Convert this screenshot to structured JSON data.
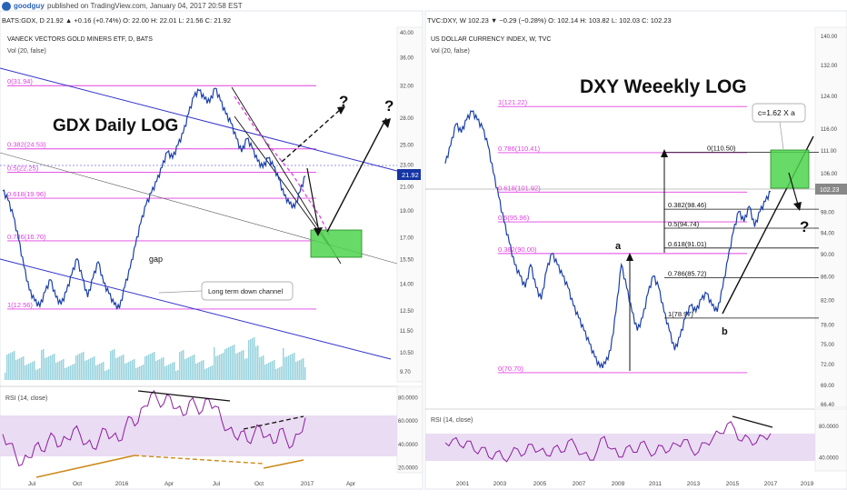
{
  "header": {
    "user": "goodguy",
    "published": "published on TradingView.com, January 04, 2017 20:58 EST"
  },
  "colors": {
    "fib": "#e040e0",
    "channel": "#3333cc",
    "price_up": "#1b3fa8",
    "rsi": "#8b1e9e",
    "rsi_band": "#eadcf3",
    "volume": "#7fc8d4",
    "box": "#4cd44c",
    "diverge": "#cc8a1a",
    "axis_highlight": "#1434a4"
  },
  "chart_data": [
    {
      "type": "line",
      "id": "gdx",
      "quote": "BATS:GDX, D  21.92 ▲ +0.16 (+0.74%)  O: 22.00  H: 22.01  L: 21.56  C: 21.92",
      "title": "VANECK VECTORS GOLD MINERS ETF, D, BATS",
      "vol_label": "Vol (20, false)",
      "annotation": "GDX Daily LOG",
      "scale": "log",
      "x_ticks": [
        "Jul",
        "Oct",
        "2016",
        "Apr",
        "Jul",
        "Oct",
        "2017",
        "Apr"
      ],
      "y_ticks": [
        40.0,
        36.0,
        32.0,
        28.0,
        25.0,
        23.0,
        21.0,
        19.0,
        17.0,
        15.5,
        14.0,
        12.5,
        11.5,
        10.5,
        9.7
      ],
      "last_price": "21.92",
      "fib_levels": [
        {
          "label": "0(31.94)",
          "value": 31.94
        },
        {
          "label": "0.382(24.53)",
          "value": 24.53
        },
        {
          "label": "0.5(22.25)",
          "value": 22.25
        },
        {
          "label": "0.618(19.96)",
          "value": 19.96
        },
        {
          "label": "0.786(16.70)",
          "value": 16.7
        },
        {
          "label": "1(12.56)",
          "value": 12.56
        }
      ],
      "notes": [
        "gap",
        "Long term down channel",
        "?",
        "?"
      ],
      "price_path": [
        [
          0,
          20.6
        ],
        [
          4,
          19.8
        ],
        [
          8,
          18.5
        ],
        [
          12,
          16.8
        ],
        [
          16,
          15.0
        ],
        [
          20,
          13.6
        ],
        [
          24,
          13.0
        ],
        [
          28,
          12.7
        ],
        [
          32,
          13.5
        ],
        [
          36,
          14.2
        ],
        [
          40,
          13.2
        ],
        [
          44,
          12.8
        ],
        [
          48,
          13.5
        ],
        [
          52,
          14.5
        ],
        [
          56,
          15.5
        ],
        [
          60,
          14.3
        ],
        [
          64,
          13.2
        ],
        [
          68,
          14.3
        ],
        [
          72,
          15.3
        ],
        [
          76,
          14.0
        ],
        [
          80,
          13.4
        ],
        [
          84,
          12.8
        ],
        [
          88,
          12.6
        ],
        [
          92,
          13.8
        ],
        [
          96,
          14.9
        ],
        [
          100,
          16.4
        ],
        [
          104,
          18.0
        ],
        [
          108,
          19.4
        ],
        [
          112,
          20.4
        ],
        [
          116,
          21.4
        ],
        [
          120,
          22.7
        ],
        [
          124,
          24.2
        ],
        [
          128,
          23.6
        ],
        [
          132,
          24.9
        ],
        [
          136,
          26.2
        ],
        [
          140,
          28.4
        ],
        [
          144,
          30.5
        ],
        [
          148,
          31.3
        ],
        [
          152,
          30.2
        ],
        [
          156,
          29.8
        ],
        [
          160,
          31.6
        ],
        [
          164,
          30.0
        ],
        [
          168,
          28.4
        ],
        [
          172,
          27.3
        ],
        [
          176,
          25.6
        ],
        [
          180,
          24.2
        ],
        [
          184,
          25.6
        ],
        [
          188,
          24.6
        ],
        [
          192,
          23.3
        ],
        [
          196,
          22.7
        ],
        [
          200,
          23.6
        ],
        [
          204,
          22.8
        ],
        [
          208,
          21.6
        ],
        [
          212,
          20.2
        ],
        [
          216,
          19.5
        ],
        [
          220,
          19.2
        ],
        [
          224,
          20.5
        ],
        [
          228,
          21.9
        ]
      ],
      "rsi": {
        "label": "RSI (14, close)",
        "y_ticks": [
          80.0,
          60.0,
          40.0,
          20.0
        ],
        "band": [
          30,
          70
        ],
        "values": [
          48,
          40,
          30,
          22,
          28,
          38,
          34,
          42,
          46,
          38,
          44,
          52,
          48,
          40,
          36,
          44,
          52,
          46,
          42,
          54,
          62,
          58,
          72,
          82,
          78,
          74,
          80,
          70,
          64,
          76,
          72,
          68,
          78,
          72,
          60,
          52,
          46,
          50,
          42,
          48,
          54,
          46,
          40,
          52,
          44,
          38,
          48,
          62
        ]
      }
    },
    {
      "type": "line",
      "id": "dxy",
      "quote": "TVC:DXY, W  102.23 ▼ −0.29 (−0.28%)  O: 102.14  H: 103.82  L: 102.03  C: 102.23",
      "title": "US DOLLAR CURRENCY INDEX, W, TVC",
      "vol_label": "Vol (20, false)",
      "annotation": "DXY Weeekly LOG",
      "scale": "log",
      "x_ticks": [
        "2001",
        "2003",
        "2005",
        "2007",
        "2009",
        "2011",
        "2013",
        "2015",
        "2017",
        "2019"
      ],
      "y_ticks": [
        140.0,
        132.0,
        124.0,
        116.0,
        111.0,
        106.0,
        102.0,
        98.0,
        94.0,
        90.0,
        86.0,
        82.0,
        78.0,
        75.0,
        72.0,
        69.0,
        66.4
      ],
      "last_price": "102.23",
      "fib_levels": [
        {
          "label": "1(121.22)",
          "value": 121.22
        },
        {
          "label": "0.786(110.41)",
          "value": 110.41
        },
        {
          "label": "0.618(101.92)",
          "value": 101.92
        },
        {
          "label": "0.5(95.96)",
          "value": 95.96
        },
        {
          "label": "0.382(90.00)",
          "value": 90.0
        },
        {
          "label": "0(70.70)",
          "value": 70.7
        }
      ],
      "projection_levels": [
        {
          "label": "0(110.50)",
          "value": 110.5
        },
        {
          "label": "0.382(98.46)",
          "value": 98.46
        },
        {
          "label": "0.5(94.74)",
          "value": 94.74
        },
        {
          "label": "0.618(91.01)",
          "value": 91.01
        },
        {
          "label": "0.786(85.72)",
          "value": 85.72
        },
        {
          "label": "1(78.97)",
          "value": 78.97
        }
      ],
      "notes": [
        "a",
        "b",
        "c=1.62 X a",
        "?"
      ],
      "price_path": [
        [
          0,
          108
        ],
        [
          4,
          112
        ],
        [
          8,
          117
        ],
        [
          12,
          115
        ],
        [
          16,
          118
        ],
        [
          20,
          120
        ],
        [
          24,
          118
        ],
        [
          28,
          116
        ],
        [
          32,
          112
        ],
        [
          36,
          106
        ],
        [
          40,
          101
        ],
        [
          44,
          96
        ],
        [
          48,
          92
        ],
        [
          52,
          88
        ],
        [
          56,
          86
        ],
        [
          60,
          84
        ],
        [
          64,
          88
        ],
        [
          68,
          84
        ],
        [
          72,
          82
        ],
        [
          76,
          87
        ],
        [
          80,
          90
        ],
        [
          84,
          88
        ],
        [
          88,
          86
        ],
        [
          92,
          84
        ],
        [
          96,
          81
        ],
        [
          100,
          79
        ],
        [
          104,
          77
        ],
        [
          108,
          75
        ],
        [
          112,
          73
        ],
        [
          116,
          71.5
        ],
        [
          120,
          72
        ],
        [
          124,
          74
        ],
        [
          128,
          80
        ],
        [
          132,
          88
        ],
        [
          136,
          84
        ],
        [
          140,
          80
        ],
        [
          144,
          77
        ],
        [
          148,
          79
        ],
        [
          152,
          83
        ],
        [
          156,
          86
        ],
        [
          160,
          84
        ],
        [
          164,
          80
        ],
        [
          168,
          77
        ],
        [
          172,
          74
        ],
        [
          176,
          76
        ],
        [
          180,
          79
        ],
        [
          184,
          81
        ],
        [
          188,
          80
        ],
        [
          192,
          82
        ],
        [
          196,
          83
        ],
        [
          200,
          81
        ],
        [
          204,
          80
        ],
        [
          208,
          84
        ],
        [
          212,
          89
        ],
        [
          216,
          94
        ],
        [
          220,
          98
        ],
        [
          224,
          96
        ],
        [
          228,
          99
        ],
        [
          232,
          95
        ],
        [
          236,
          98
        ],
        [
          240,
          100
        ],
        [
          244,
          102
        ]
      ],
      "rsi": {
        "label": "RSI (14, close)",
        "y_ticks": [
          80.0,
          40.0
        ],
        "band": [
          30,
          70
        ],
        "values": [
          58,
          62,
          55,
          60,
          48,
          52,
          40,
          46,
          38,
          42,
          50,
          44,
          56,
          48,
          42,
          52,
          46,
          60,
          54,
          44,
          36,
          48,
          66,
          50,
          40,
          52,
          46,
          58,
          50,
          44,
          54,
          48,
          56,
          62,
          50,
          46,
          58,
          64,
          70,
          82,
          76,
          60,
          64,
          58,
          66,
          70
        ]
      }
    }
  ]
}
